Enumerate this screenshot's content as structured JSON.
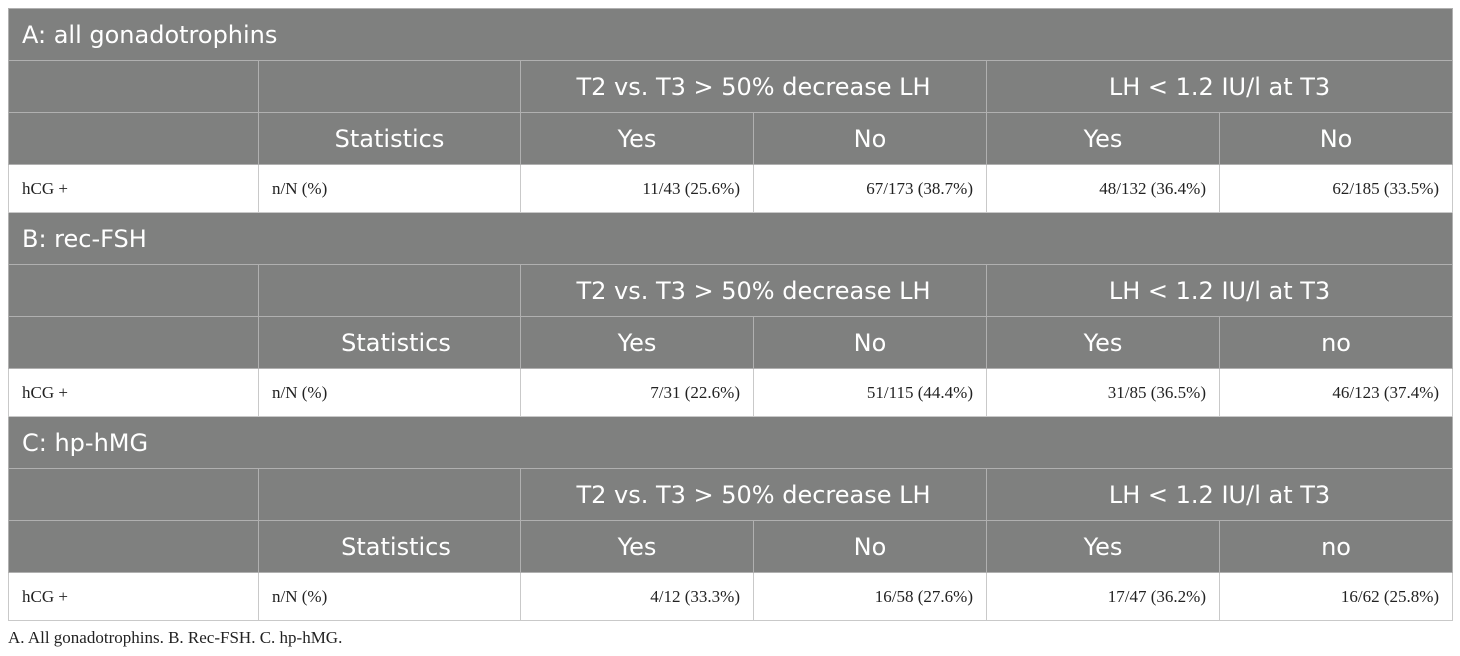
{
  "sections": [
    {
      "title": "A: all gonadotrophins",
      "group1": "T2 vs. T3 > 50% decrease LH",
      "group2": "LH < 1.2 IU/l at T3",
      "stat_header": "Statistics",
      "cols": [
        "Yes",
        "No",
        "Yes",
        "No"
      ],
      "row_label": "hCG +",
      "row_stat": "n/N (%)",
      "values": [
        "11/43 (25.6%)",
        "67/173 (38.7%)",
        "48/132 (36.4%)",
        "62/185 (33.5%)"
      ]
    },
    {
      "title": "B: rec-FSH",
      "group1": "T2 vs. T3 > 50% decrease LH",
      "group2": "LH < 1.2 IU/l at T3",
      "stat_header": "Statistics",
      "cols": [
        "Yes",
        "No",
        "Yes",
        "no"
      ],
      "row_label": "hCG +",
      "row_stat": "n/N (%)",
      "values": [
        "7/31 (22.6%)",
        "51/115 (44.4%)",
        "31/85 (36.5%)",
        "46/123 (37.4%)"
      ]
    },
    {
      "title": "C: hp-hMG",
      "group1": "T2 vs. T3 > 50% decrease LH",
      "group2": "LH < 1.2 IU/l at T3",
      "stat_header": "Statistics",
      "cols": [
        "Yes",
        "No",
        "Yes",
        "no"
      ],
      "row_label": "hCG +",
      "row_stat": "n/N (%)",
      "values": [
        "4/12 (33.3%)",
        "16/58 (27.6%)",
        "17/47 (36.2%)",
        "16/62 (25.8%)"
      ]
    }
  ],
  "caption": "A. All gonadotrophins. B. Rec-FSH. C. hp-hMG."
}
